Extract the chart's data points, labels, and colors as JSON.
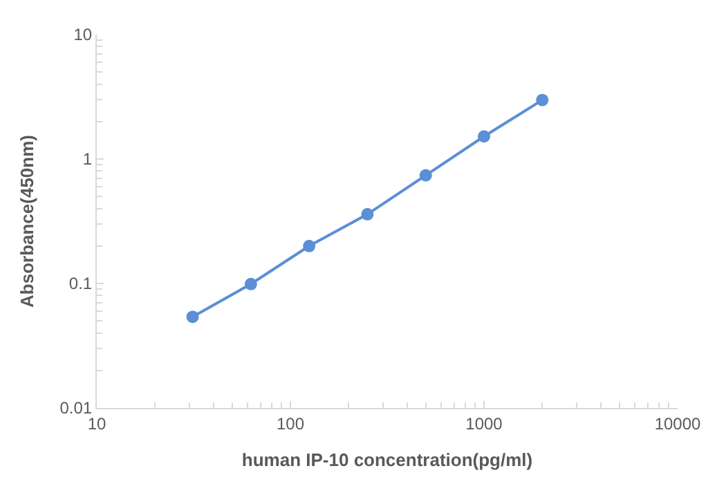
{
  "chart_data": {
    "type": "line",
    "xlabel": "human IP-10 concentration(pg/ml)",
    "ylabel": "Absorbance(450nm)",
    "x": [
      31.25,
      62.5,
      125,
      250,
      500,
      1000,
      2000
    ],
    "series": [
      {
        "color": "#5b8fd6",
        "values": [
          0.054,
          0.099,
          0.2,
          0.36,
          0.74,
          1.52,
          2.98
        ]
      }
    ],
    "log": "xy",
    "xlim": [
      10,
      10000
    ],
    "ylim": [
      0.01,
      10
    ],
    "xticks": [
      10,
      100,
      1000,
      10000
    ],
    "yticks": [
      0.01,
      0.1,
      1,
      10
    ],
    "legend": false,
    "marker": "circle",
    "line_style": "solid"
  }
}
